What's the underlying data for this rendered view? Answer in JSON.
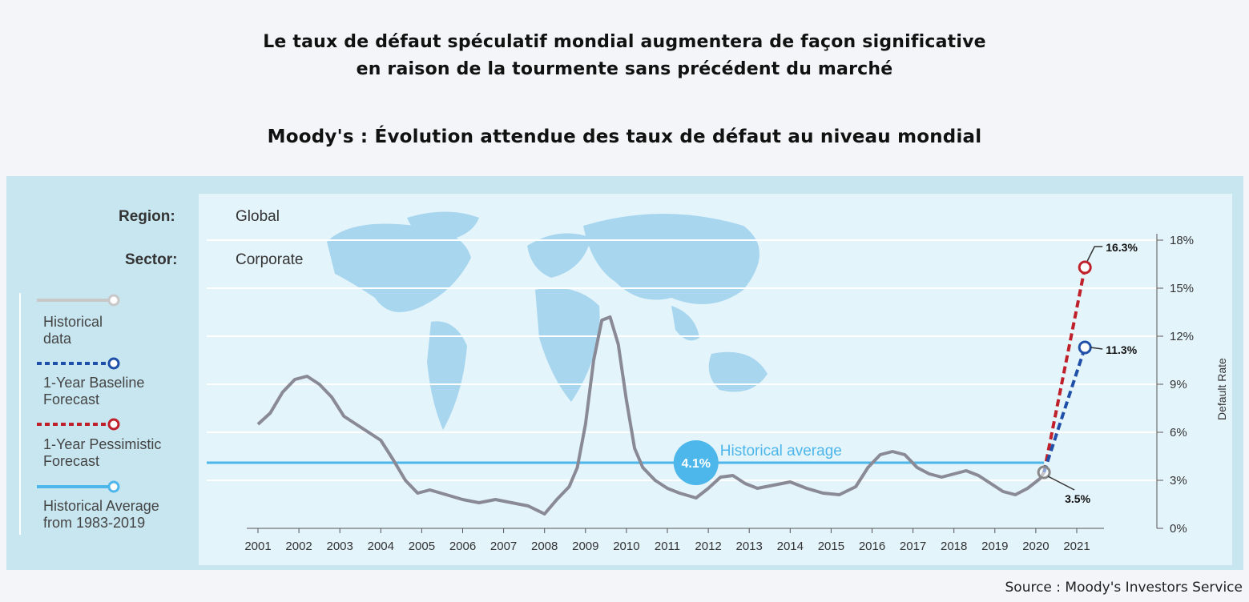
{
  "header": {
    "title_line1": "Le taux de défaut spéculatif mondial augmentera de façon significative",
    "title_line2": "en raison de la tourmente sans précédent du marché",
    "subtitle": "Moody's : Évolution attendue des taux de défaut au niveau mondial"
  },
  "panel": {
    "region_label": "Region:",
    "region_value": "Global",
    "sector_label": "Sector:",
    "sector_value": "Corporate"
  },
  "legend": {
    "historical": "Historical data",
    "baseline": "1-Year Baseline Forecast",
    "pessimistic": "1-Year Pessimistic Forecast",
    "average": "Historical Average from 1983-2019"
  },
  "colors": {
    "historical": "#8a8a96",
    "baseline": "#1f4fa8",
    "pessimistic": "#c0202a",
    "average": "#4db6ea",
    "map": "#a8d6ef"
  },
  "source": "Source : Moody's Investors Service",
  "chart_data": {
    "type": "line",
    "ylabel": "Default Rate",
    "ylim": [
      0,
      18
    ],
    "xlim": [
      2001,
      2022
    ],
    "y_ticks": [
      "0%",
      "3%",
      "6%",
      "9%",
      "12%",
      "15%",
      "18%"
    ],
    "x_ticks": [
      "2001",
      "2002",
      "2003",
      "2004",
      "2005",
      "2006",
      "2007",
      "2008",
      "2009",
      "2010",
      "2011",
      "2012",
      "2013",
      "2014",
      "2015",
      "2016",
      "2017",
      "2018",
      "2019",
      "2020",
      "2021"
    ],
    "grid": true,
    "series": [
      {
        "name": "Historical data",
        "x": [
          2001.0,
          2001.3,
          2001.6,
          2001.9,
          2002.2,
          2002.5,
          2002.8,
          2003.1,
          2003.4,
          2003.7,
          2004.0,
          2004.3,
          2004.6,
          2004.9,
          2005.2,
          2005.6,
          2006.0,
          2006.4,
          2006.8,
          2007.2,
          2007.6,
          2008.0,
          2008.3,
          2008.6,
          2008.8,
          2009.0,
          2009.2,
          2009.4,
          2009.6,
          2009.8,
          2010.0,
          2010.2,
          2010.4,
          2010.7,
          2011.0,
          2011.3,
          2011.7,
          2012.0,
          2012.3,
          2012.6,
          2012.9,
          2013.2,
          2013.6,
          2014.0,
          2014.4,
          2014.8,
          2015.2,
          2015.6,
          2015.9,
          2016.2,
          2016.5,
          2016.8,
          2017.1,
          2017.4,
          2017.7,
          2018.0,
          2018.3,
          2018.6,
          2018.9,
          2019.2,
          2019.5,
          2019.8,
          2020.1,
          2020.2
        ],
        "y": [
          6.5,
          7.2,
          8.5,
          9.3,
          9.5,
          9.0,
          8.2,
          7.0,
          6.5,
          6.0,
          5.5,
          4.3,
          3.0,
          2.2,
          2.4,
          2.1,
          1.8,
          1.6,
          1.8,
          1.6,
          1.4,
          0.9,
          1.8,
          2.6,
          3.8,
          6.5,
          10.5,
          13.0,
          13.2,
          11.5,
          8.0,
          5.0,
          3.8,
          3.0,
          2.5,
          2.2,
          1.9,
          2.5,
          3.2,
          3.3,
          2.8,
          2.5,
          2.7,
          2.9,
          2.5,
          2.2,
          2.1,
          2.6,
          3.8,
          4.6,
          4.8,
          4.6,
          3.8,
          3.4,
          3.2,
          3.4,
          3.6,
          3.3,
          2.8,
          2.3,
          2.1,
          2.5,
          3.1,
          3.5
        ]
      },
      {
        "name": "1-Year Baseline Forecast",
        "x": [
          2020.2,
          2021.2
        ],
        "y": [
          3.5,
          11.3
        ]
      },
      {
        "name": "1-Year Pessimistic Forecast",
        "x": [
          2020.2,
          2021.2
        ],
        "y": [
          3.5,
          16.3
        ]
      },
      {
        "name": "Historical Average from 1983-2019",
        "value": 4.1
      }
    ],
    "annotations": {
      "avg_value": "4.1%",
      "avg_label": "Historical average",
      "start_label": "3.5%",
      "baseline_label": "11.3%",
      "pessimistic_label": "16.3%"
    }
  }
}
